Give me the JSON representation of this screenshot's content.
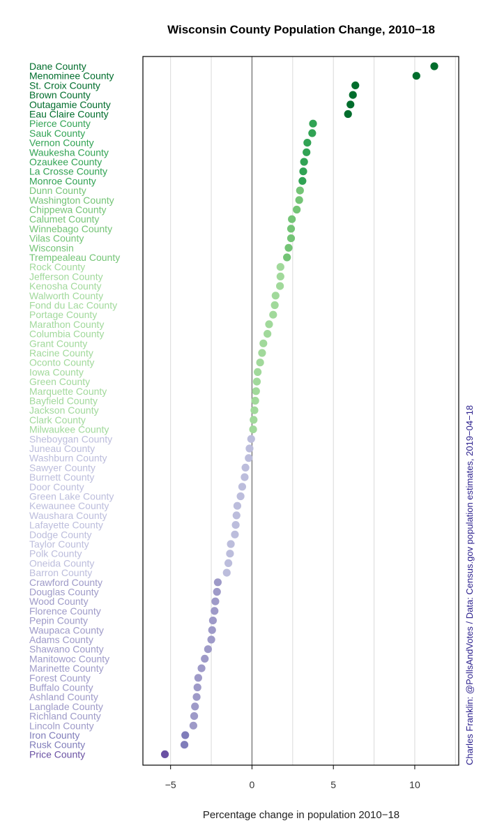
{
  "chart_data": {
    "type": "scatter",
    "title": "Wisconsin County Population Change, 2010−18",
    "xlabel": "Percentage change in population 2010−18",
    "ylabel": "",
    "xlim": [
      -6.7,
      12.7
    ],
    "xticks": [
      -5,
      0,
      5,
      10
    ],
    "xtick_labels": [
      "−5",
      "0",
      "5",
      "10"
    ],
    "grid": true,
    "credit": "Charles Franklin: @PollsAndVotes / Data: Census.gov population estimates, 2019−04−18",
    "colors": {
      "pos_strong": "#006d2c",
      "pos_mid": "#31a354",
      "pos_light": "#74c476",
      "pos_pale": "#a1d99b",
      "neg_pale": "#bcbddc",
      "neg_light": "#9e9ac8",
      "neg_mid": "#807dba",
      "neg_strong": "#6a51a3"
    },
    "categories": [
      "Dane County",
      "Menominee County",
      "St. Croix County",
      "Brown County",
      "Outagamie County",
      "Eau Claire County",
      "Pierce County",
      "Sauk County",
      "Vernon County",
      "Waukesha County",
      "Ozaukee County",
      "La Crosse County",
      "Monroe County",
      "Dunn County",
      "Washington County",
      "Chippewa County",
      "Calumet County",
      "Winnebago County",
      "Vilas County",
      "Wisconsin",
      "Trempealeau County",
      "Rock County",
      "Jefferson County",
      "Kenosha County",
      "Walworth County",
      "Fond du Lac County",
      "Portage County",
      "Marathon County",
      "Columbia County",
      "Grant County",
      "Racine County",
      "Oconto County",
      "Iowa County",
      "Green County",
      "Marquette County",
      "Bayfield County",
      "Jackson County",
      "Clark County",
      "Milwaukee County",
      "Sheboygan County",
      "Juneau County",
      "Washburn County",
      "Sawyer County",
      "Burnett County",
      "Door County",
      "Green Lake County",
      "Kewaunee County",
      "Waushara County",
      "Lafayette County",
      "Dodge County",
      "Taylor County",
      "Polk County",
      "Oneida County",
      "Barron County",
      "Crawford County",
      "Douglas County",
      "Wood County",
      "Florence County",
      "Pepin County",
      "Waupaca County",
      "Adams County",
      "Shawano County",
      "Manitowoc County",
      "Marinette County",
      "Forest County",
      "Buffalo County",
      "Ashland County",
      "Langlade County",
      "Richland County",
      "Lincoln County",
      "Iron County",
      "Rusk County",
      "Price County"
    ],
    "values": [
      11.2,
      10.1,
      6.35,
      6.2,
      6.05,
      5.9,
      3.75,
      3.7,
      3.4,
      3.35,
      3.2,
      3.15,
      3.1,
      2.95,
      2.9,
      2.75,
      2.45,
      2.4,
      2.4,
      2.25,
      2.15,
      1.75,
      1.75,
      1.72,
      1.45,
      1.4,
      1.3,
      1.05,
      0.95,
      0.7,
      0.62,
      0.5,
      0.35,
      0.3,
      0.25,
      0.2,
      0.15,
      0.1,
      0.07,
      -0.05,
      -0.15,
      -0.2,
      -0.4,
      -0.45,
      -0.6,
      -0.7,
      -0.9,
      -0.95,
      -1.0,
      -1.05,
      -1.3,
      -1.35,
      -1.45,
      -1.55,
      -2.1,
      -2.15,
      -2.25,
      -2.3,
      -2.4,
      -2.45,
      -2.5,
      -2.7,
      -2.9,
      -3.1,
      -3.3,
      -3.35,
      -3.4,
      -3.5,
      -3.55,
      -3.6,
      -4.1,
      -4.15,
      -5.35
    ]
  }
}
